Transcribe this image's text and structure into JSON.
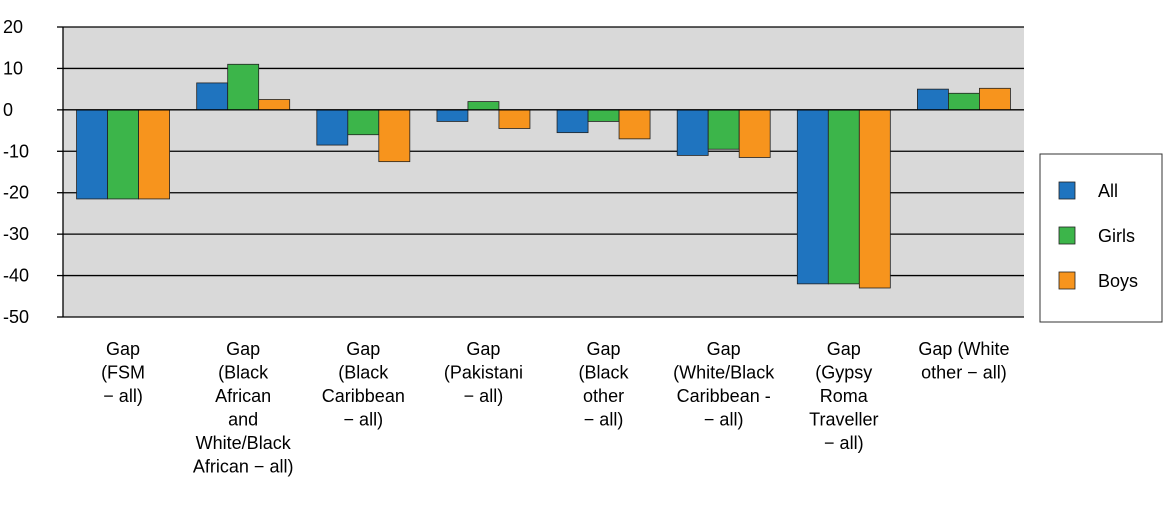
{
  "chart_data": {
    "type": "bar",
    "title": "",
    "xlabel": "",
    "ylabel": "",
    "ylim": [
      -50,
      20
    ],
    "yticks": [
      20,
      10,
      0,
      -10,
      -20,
      -30,
      -40,
      -50
    ],
    "grid": true,
    "legend_position": "right",
    "categories": [
      [
        "Gap",
        "(FSM",
        "− all)"
      ],
      [
        "Gap",
        "(Black",
        "African",
        "and",
        "White/Black",
        "African − all)"
      ],
      [
        "Gap",
        "(Black",
        "Caribbean",
        "− all)"
      ],
      [
        "Gap",
        "(Pakistani",
        "− all)"
      ],
      [
        "Gap",
        "(Black",
        "other",
        "− all)"
      ],
      [
        "Gap",
        "(White/Black",
        "Caribbean -",
        "− all)"
      ],
      [
        "Gap",
        "(Gypsy",
        "Roma",
        "Traveller",
        "− all)"
      ],
      [
        "Gap (White",
        "other − all)"
      ]
    ],
    "series": [
      {
        "name": "All",
        "color": "#1f74bf",
        "values": [
          -21.5,
          6.5,
          -8.5,
          -2.8,
          -5.5,
          -11,
          -42,
          5
        ]
      },
      {
        "name": "Girls",
        "color": "#3cb54a",
        "values": [
          -21.5,
          11,
          -6,
          2,
          -2.8,
          -9.5,
          -42,
          4
        ]
      },
      {
        "name": "Boys",
        "color": "#f7941d",
        "values": [
          -21.5,
          2.5,
          -12.5,
          -4.5,
          -7,
          -11.5,
          -43,
          5.2
        ]
      }
    ]
  },
  "colors": {
    "plot_background": "#d9d9d9",
    "gridline": "#000000",
    "bar_outline": "#222222"
  }
}
